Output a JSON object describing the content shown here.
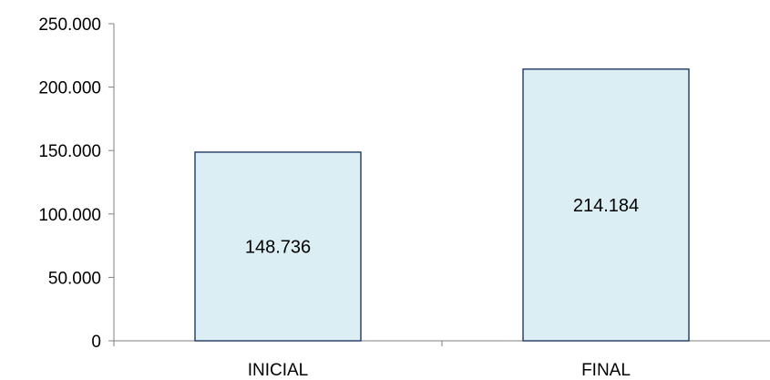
{
  "chart_data": {
    "type": "bar",
    "categories": [
      "INICIAL",
      "FINAL"
    ],
    "values": [
      148736,
      214184
    ],
    "value_labels": [
      "148.736",
      "214.184"
    ],
    "ylim": [
      0,
      250000
    ],
    "y_ticks": [
      0,
      50000,
      100000,
      150000,
      200000,
      250000
    ],
    "y_tick_labels": [
      "0",
      "50.000",
      "100.000",
      "150.000",
      "200.000",
      "250.000"
    ],
    "title": "",
    "xlabel": "",
    "ylabel": "",
    "grid": false,
    "legend": "none",
    "colors": {
      "bar_fill": "#dbeef4",
      "bar_stroke": "#1f3864",
      "axis": "#808080"
    }
  }
}
